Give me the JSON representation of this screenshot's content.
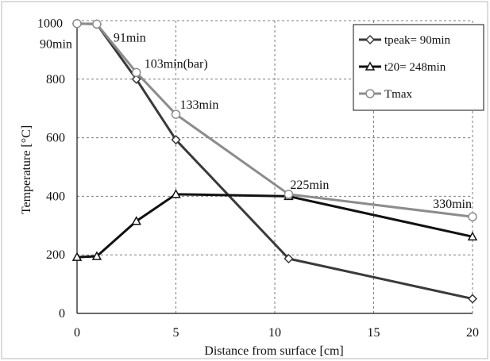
{
  "chart_data": {
    "type": "line",
    "x_ticks": [
      "0",
      "5",
      "10",
      "15",
      "20"
    ],
    "y_ticks": [
      "0",
      "200",
      "400",
      "600",
      "800",
      "1000"
    ],
    "xlabel": "Distance from surface [cm]",
    "ylabel": "Temperature [°C]",
    "xlim": [
      0,
      20
    ],
    "ylim": [
      0,
      1000
    ],
    "grid": true,
    "legend_position": "top-right",
    "series": [
      {
        "name": "tpeak= 90min",
        "marker": "diamond",
        "color": "#3a3a3a",
        "x": [
          0,
          1,
          3,
          5,
          10.7,
          20
        ],
        "y": [
          990,
          988,
          800,
          593,
          187,
          50
        ]
      },
      {
        "name": "t20= 248min",
        "marker": "triangle",
        "color": "#111111",
        "x": [
          0,
          1,
          3,
          5,
          10.7,
          20
        ],
        "y": [
          192,
          195,
          315,
          407,
          400,
          262
        ]
      },
      {
        "name": "Tmax",
        "marker": "circle",
        "color": "#8c8c8c",
        "x": [
          0,
          1,
          3,
          5,
          10.7,
          20
        ],
        "y": [
          990,
          988,
          823,
          680,
          407,
          330
        ]
      }
    ],
    "annotations": [
      {
        "text": "1000",
        "x": 0,
        "y": 990
      },
      {
        "text": "90min",
        "x": 0,
        "y": 990
      },
      {
        "text": "91min",
        "x": 1,
        "y": 988
      },
      {
        "text": "103min(bar)",
        "x": 3,
        "y": 823
      },
      {
        "text": "133min",
        "x": 5,
        "y": 680
      },
      {
        "text": "225min",
        "x": 10.7,
        "y": 407
      },
      {
        "text": "330min",
        "x": 20,
        "y": 330
      }
    ]
  }
}
